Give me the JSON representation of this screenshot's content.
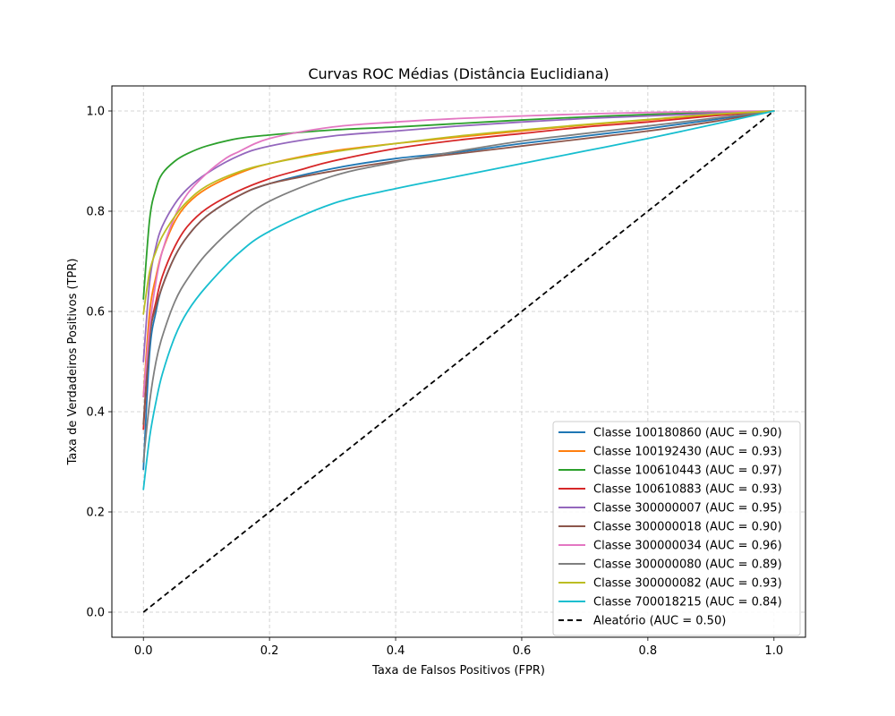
{
  "chart_data": {
    "type": "line",
    "title": "Curvas ROC Médias (Distância Euclidiana)",
    "xlabel": "Taxa de Falsos Positivos (FPR)",
    "ylabel": "Taxa de Verdadeiros Positivos (TPR)",
    "xlim": [
      -0.05,
      1.05
    ],
    "ylim": [
      -0.05,
      1.05
    ],
    "xticks": [
      "0.0",
      "0.2",
      "0.4",
      "0.6",
      "0.8",
      "1.0"
    ],
    "yticks": [
      "0.0",
      "0.2",
      "0.4",
      "0.6",
      "0.8",
      "1.0"
    ],
    "grid": true,
    "legend_position": "lower right",
    "series": [
      {
        "name": "Classe 100180860 (AUC = 0.90)",
        "color": "#1f77b4",
        "x": [
          0,
          0.01,
          0.02,
          0.03,
          0.05,
          0.07,
          0.1,
          0.15,
          0.2,
          0.3,
          0.4,
          0.5,
          0.6,
          0.7,
          0.8,
          0.9,
          1.0
        ],
        "y": [
          0.285,
          0.52,
          0.6,
          0.65,
          0.71,
          0.75,
          0.79,
          0.83,
          0.855,
          0.885,
          0.905,
          0.918,
          0.935,
          0.95,
          0.965,
          0.982,
          1.0
        ]
      },
      {
        "name": "Classe 100192430 (AUC = 0.93)",
        "color": "#ff7f0e",
        "x": [
          0,
          0.01,
          0.02,
          0.03,
          0.05,
          0.07,
          0.1,
          0.15,
          0.2,
          0.3,
          0.4,
          0.5,
          0.6,
          0.7,
          0.8,
          0.9,
          1.0
        ],
        "y": [
          0.43,
          0.6,
          0.67,
          0.72,
          0.78,
          0.815,
          0.845,
          0.875,
          0.895,
          0.92,
          0.935,
          0.948,
          0.96,
          0.972,
          0.982,
          0.992,
          1.0
        ]
      },
      {
        "name": "Classe 100610443 (AUC = 0.97)",
        "color": "#2ca02c",
        "x": [
          0,
          0.01,
          0.02,
          0.03,
          0.05,
          0.07,
          0.1,
          0.15,
          0.2,
          0.3,
          0.4,
          0.5,
          0.6,
          0.7,
          0.8,
          0.9,
          1.0
        ],
        "y": [
          0.625,
          0.785,
          0.845,
          0.875,
          0.9,
          0.915,
          0.93,
          0.945,
          0.952,
          0.962,
          0.968,
          0.975,
          0.982,
          0.988,
          0.993,
          0.997,
          1.0
        ]
      },
      {
        "name": "Classe 100610883 (AUC = 0.93)",
        "color": "#d62728",
        "x": [
          0,
          0.01,
          0.02,
          0.03,
          0.05,
          0.07,
          0.1,
          0.15,
          0.2,
          0.25,
          0.3,
          0.4,
          0.5,
          0.6,
          0.7,
          0.8,
          0.9,
          1.0
        ],
        "y": [
          0.365,
          0.55,
          0.62,
          0.67,
          0.73,
          0.77,
          0.805,
          0.84,
          0.865,
          0.883,
          0.9,
          0.925,
          0.942,
          0.955,
          0.968,
          0.978,
          0.99,
          1.0
        ]
      },
      {
        "name": "Classe 300000007 (AUC = 0.95)",
        "color": "#9467bd",
        "x": [
          0,
          0.01,
          0.02,
          0.03,
          0.05,
          0.07,
          0.1,
          0.15,
          0.2,
          0.3,
          0.4,
          0.5,
          0.6,
          0.7,
          0.8,
          0.9,
          1.0
        ],
        "y": [
          0.5,
          0.66,
          0.73,
          0.77,
          0.815,
          0.845,
          0.875,
          0.91,
          0.93,
          0.95,
          0.96,
          0.97,
          0.978,
          0.985,
          0.99,
          0.995,
          1.0
        ]
      },
      {
        "name": "Classe 300000018 (AUC = 0.90)",
        "color": "#8c564b",
        "x": [
          0,
          0.01,
          0.02,
          0.03,
          0.05,
          0.07,
          0.1,
          0.15,
          0.2,
          0.3,
          0.4,
          0.5,
          0.6,
          0.7,
          0.8,
          0.9,
          1.0
        ],
        "y": [
          0.375,
          0.55,
          0.61,
          0.65,
          0.71,
          0.75,
          0.79,
          0.83,
          0.855,
          0.88,
          0.9,
          0.915,
          0.93,
          0.945,
          0.96,
          0.978,
          1.0
        ]
      },
      {
        "name": "Classe 300000034 (AUC = 0.96)",
        "color": "#e377c2",
        "x": [
          0,
          0.01,
          0.02,
          0.03,
          0.05,
          0.07,
          0.1,
          0.13,
          0.15,
          0.2,
          0.3,
          0.4,
          0.5,
          0.6,
          0.7,
          0.8,
          0.9,
          1.0
        ],
        "y": [
          0.43,
          0.57,
          0.66,
          0.72,
          0.79,
          0.835,
          0.875,
          0.905,
          0.918,
          0.945,
          0.968,
          0.978,
          0.985,
          0.99,
          0.994,
          0.997,
          0.999,
          1.0
        ]
      },
      {
        "name": "Classe 300000080 (AUC = 0.89)",
        "color": "#7f7f7f",
        "x": [
          0,
          0.01,
          0.02,
          0.03,
          0.05,
          0.07,
          0.1,
          0.15,
          0.2,
          0.3,
          0.4,
          0.5,
          0.6,
          0.7,
          0.8,
          0.9,
          1.0
        ],
        "y": [
          0.3,
          0.42,
          0.5,
          0.55,
          0.62,
          0.665,
          0.715,
          0.775,
          0.82,
          0.87,
          0.898,
          0.92,
          0.94,
          0.955,
          0.97,
          0.985,
          1.0
        ]
      },
      {
        "name": "Classe 300000082 (AUC = 0.93)",
        "color": "#bcbd22",
        "x": [
          0,
          0.01,
          0.02,
          0.03,
          0.05,
          0.07,
          0.1,
          0.15,
          0.2,
          0.3,
          0.4,
          0.5,
          0.6,
          0.7,
          0.8,
          0.9,
          1.0
        ],
        "y": [
          0.595,
          0.68,
          0.72,
          0.75,
          0.79,
          0.82,
          0.85,
          0.878,
          0.895,
          0.918,
          0.935,
          0.95,
          0.962,
          0.973,
          0.983,
          0.993,
          1.0
        ]
      },
      {
        "name": "Classe 700018215 (AUC = 0.84)",
        "color": "#17becf",
        "x": [
          0,
          0.01,
          0.02,
          0.03,
          0.05,
          0.07,
          0.1,
          0.15,
          0.2,
          0.3,
          0.4,
          0.5,
          0.6,
          0.7,
          0.8,
          0.9,
          1.0
        ],
        "y": [
          0.245,
          0.35,
          0.42,
          0.475,
          0.55,
          0.6,
          0.65,
          0.715,
          0.76,
          0.815,
          0.845,
          0.87,
          0.895,
          0.92,
          0.945,
          0.972,
          1.0
        ]
      },
      {
        "name": "Aleatório (AUC = 0.50)",
        "color": "#000000",
        "dashed": true,
        "x": [
          0,
          1
        ],
        "y": [
          0,
          1
        ]
      }
    ]
  }
}
